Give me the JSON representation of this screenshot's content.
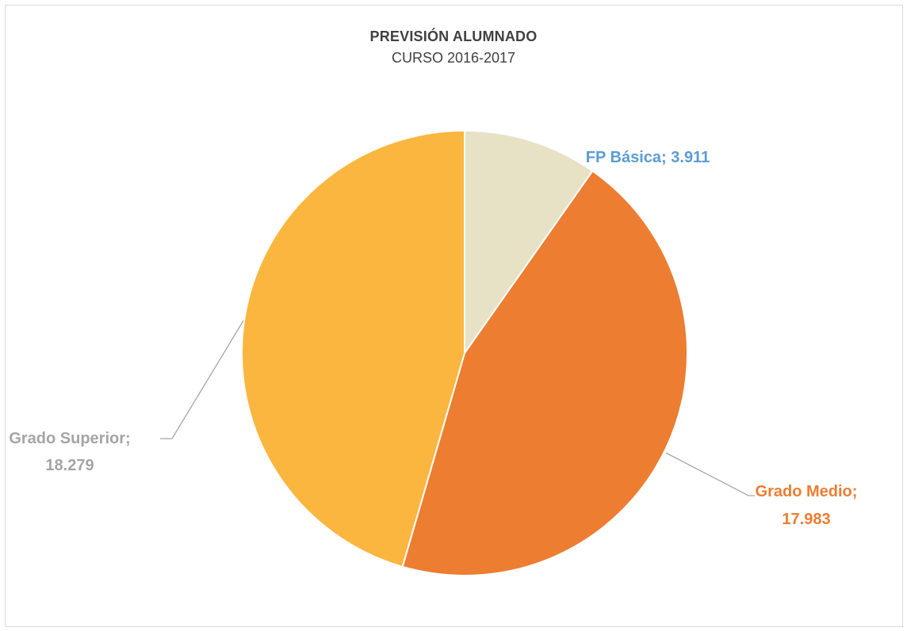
{
  "chart_data": {
    "type": "pie",
    "title": "PREVISIÓN ALUMNADO",
    "subtitle": "CURSO 2016-2017",
    "slices": [
      {
        "name": "FP Básica",
        "value": 3911,
        "display_line1": "FP Básica; 3.911",
        "display_line2": "",
        "color": "#e7e1c6",
        "label_color": "#5b9bd5"
      },
      {
        "name": "Grado Medio",
        "value": 17983,
        "display_line1": "Grado Medio;",
        "display_line2": "17.983",
        "color": "#ed7d31",
        "label_color": "#ed7d31"
      },
      {
        "name": "Grado Superior",
        "value": 18279,
        "display_line1": "Grado Superior;",
        "display_line2": "18.279",
        "color": "#fbb63f",
        "label_color": "#a5a5a5"
      }
    ],
    "legend": "none"
  }
}
